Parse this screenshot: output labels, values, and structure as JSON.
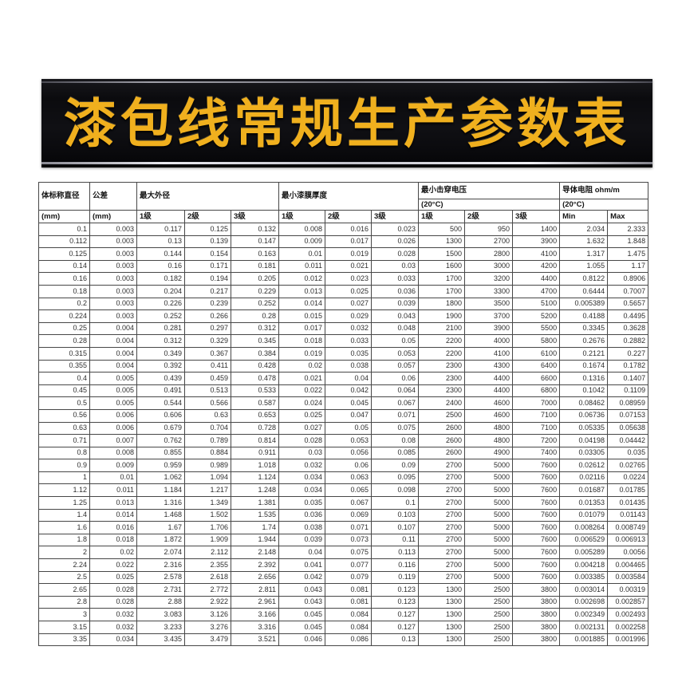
{
  "banner": {
    "title": "漆包线常规生产参数表"
  },
  "colors": {
    "banner_background": "#0b0b0e",
    "banner_title_gold": "#f0b01e",
    "banner_trim_silver": "#c4c4cd",
    "table_border": "#474747",
    "table_text": "#2e2e2e"
  },
  "table": {
    "header": {
      "diameter": {
        "label": "体标称直径",
        "unit": "(mm)"
      },
      "tolerance": {
        "label": "公差",
        "unit": "(mm)"
      },
      "max_od": {
        "label": "最大外径",
        "grades": [
          "1级",
          "2级",
          "3级"
        ]
      },
      "min_film": {
        "label": "最小漆膜厚度",
        "grades": [
          "1级",
          "2级",
          "3级"
        ]
      },
      "breakdown": {
        "label": "最小击穿电压",
        "temp": "(20°C)",
        "grades": [
          "1级",
          "2级",
          "3级"
        ]
      },
      "resistance": {
        "label": "导体电阻 ohm/m",
        "temp": "(20°C)",
        "limits": [
          "Min",
          "Max"
        ]
      }
    },
    "rows": [
      [
        "0.1",
        "0.003",
        "0.117",
        "0.125",
        "0.132",
        "0.008",
        "0.016",
        "0.023",
        "500",
        "950",
        "1400",
        "2.034",
        "2.333"
      ],
      [
        "0.112",
        "0.003",
        "0.13",
        "0.139",
        "0.147",
        "0.009",
        "0.017",
        "0.026",
        "1300",
        "2700",
        "3900",
        "1.632",
        "1.848"
      ],
      [
        "0.125",
        "0.003",
        "0.144",
        "0.154",
        "0.163",
        "0.01",
        "0.019",
        "0.028",
        "1500",
        "2800",
        "4100",
        "1.317",
        "1.475"
      ],
      [
        "0.14",
        "0.003",
        "0.16",
        "0.171",
        "0.181",
        "0.011",
        "0.021",
        "0.03",
        "1600",
        "3000",
        "4200",
        "1.055",
        "1.17"
      ],
      [
        "0.16",
        "0.003",
        "0.182",
        "0.194",
        "0.205",
        "0.012",
        "0.023",
        "0.033",
        "1700",
        "3200",
        "4400",
        "0.8122",
        "0.8906"
      ],
      [
        "0.18",
        "0.003",
        "0.204",
        "0.217",
        "0.229",
        "0.013",
        "0.025",
        "0.036",
        "1700",
        "3300",
        "4700",
        "0.6444",
        "0.7007"
      ],
      [
        "0.2",
        "0.003",
        "0.226",
        "0.239",
        "0.252",
        "0.014",
        "0.027",
        "0.039",
        "1800",
        "3500",
        "5100",
        "0.005389",
        "0.5657"
      ],
      [
        "0.224",
        "0.003",
        "0.252",
        "0.266",
        "0.28",
        "0.015",
        "0.029",
        "0.043",
        "1900",
        "3700",
        "5200",
        "0.4188",
        "0.4495"
      ],
      [
        "0.25",
        "0.004",
        "0.281",
        "0.297",
        "0.312",
        "0.017",
        "0.032",
        "0.048",
        "2100",
        "3900",
        "5500",
        "0.3345",
        "0.3628"
      ],
      [
        "0.28",
        "0.004",
        "0.312",
        "0.329",
        "0.345",
        "0.018",
        "0.033",
        "0.05",
        "2200",
        "4000",
        "5800",
        "0.2676",
        "0.2882"
      ],
      [
        "0.315",
        "0.004",
        "0.349",
        "0.367",
        "0.384",
        "0.019",
        "0.035",
        "0.053",
        "2200",
        "4100",
        "6100",
        "0.2121",
        "0.227"
      ],
      [
        "0.355",
        "0.004",
        "0.392",
        "0.411",
        "0.428",
        "0.02",
        "0.038",
        "0.057",
        "2300",
        "4300",
        "6400",
        "0.1674",
        "0.1782"
      ],
      [
        "0.4",
        "0.005",
        "0.439",
        "0.459",
        "0.478",
        "0.021",
        "0.04",
        "0.06",
        "2300",
        "4400",
        "6600",
        "0.1316",
        "0.1407"
      ],
      [
        "0.45",
        "0.005",
        "0.491",
        "0.513",
        "0.533",
        "0.022",
        "0.042",
        "0.064",
        "2300",
        "4400",
        "6800",
        "0.1042",
        "0.1109"
      ],
      [
        "0.5",
        "0.005",
        "0.544",
        "0.566",
        "0.587",
        "0.024",
        "0.045",
        "0.067",
        "2400",
        "4600",
        "7000",
        "0.08462",
        "0.08959"
      ],
      [
        "0.56",
        "0.006",
        "0.606",
        "0.63",
        "0.653",
        "0.025",
        "0.047",
        "0.071",
        "2500",
        "4600",
        "7100",
        "0.06736",
        "0.07153"
      ],
      [
        "0.63",
        "0.006",
        "0.679",
        "0.704",
        "0.728",
        "0.027",
        "0.05",
        "0.075",
        "2600",
        "4800",
        "7100",
        "0.05335",
        "0.05638"
      ],
      [
        "0.71",
        "0.007",
        "0.762",
        "0.789",
        "0.814",
        "0.028",
        "0.053",
        "0.08",
        "2600",
        "4800",
        "7200",
        "0.04198",
        "0.04442"
      ],
      [
        "0.8",
        "0.008",
        "0.855",
        "0.884",
        "0.911",
        "0.03",
        "0.056",
        "0.085",
        "2600",
        "4900",
        "7400",
        "0.03305",
        "0.035"
      ],
      [
        "0.9",
        "0.009",
        "0.959",
        "0.989",
        "1.018",
        "0.032",
        "0.06",
        "0.09",
        "2700",
        "5000",
        "7600",
        "0.02612",
        "0.02765"
      ],
      [
        "1",
        "0.01",
        "1.062",
        "1.094",
        "1.124",
        "0.034",
        "0.063",
        "0.095",
        "2700",
        "5000",
        "7600",
        "0.02116",
        "0.0224"
      ],
      [
        "1.12",
        "0.011",
        "1.184",
        "1.217",
        "1.248",
        "0.034",
        "0.065",
        "0.098",
        "2700",
        "5000",
        "7600",
        "0.01687",
        "0.01785"
      ],
      [
        "1.25",
        "0.013",
        "1.316",
        "1.349",
        "1.381",
        "0.035",
        "0.067",
        "0.1",
        "2700",
        "5000",
        "7600",
        "0.01353",
        "0.01435"
      ],
      [
        "1.4",
        "0.014",
        "1.468",
        "1.502",
        "1.535",
        "0.036",
        "0.069",
        "0.103",
        "2700",
        "5000",
        "7600",
        "0.01079",
        "0.01143"
      ],
      [
        "1.6",
        "0.016",
        "1.67",
        "1.706",
        "1.74",
        "0.038",
        "0.071",
        "0.107",
        "2700",
        "5000",
        "7600",
        "0.008264",
        "0.008749"
      ],
      [
        "1.8",
        "0.018",
        "1.872",
        "1.909",
        "1.944",
        "0.039",
        "0.073",
        "0.11",
        "2700",
        "5000",
        "7600",
        "0.006529",
        "0.006913"
      ],
      [
        "2",
        "0.02",
        "2.074",
        "2.112",
        "2.148",
        "0.04",
        "0.075",
        "0.113",
        "2700",
        "5000",
        "7600",
        "0.005289",
        "0.0056"
      ],
      [
        "2.24",
        "0.022",
        "2.316",
        "2.355",
        "2.392",
        "0.041",
        "0.077",
        "0.116",
        "2700",
        "5000",
        "7600",
        "0.004218",
        "0.004465"
      ],
      [
        "2.5",
        "0.025",
        "2.578",
        "2.618",
        "2.656",
        "0.042",
        "0.079",
        "0.119",
        "2700",
        "5000",
        "7600",
        "0.003385",
        "0.003584"
      ],
      [
        "2.65",
        "0.028",
        "2.731",
        "2.772",
        "2.811",
        "0.043",
        "0.081",
        "0.123",
        "1300",
        "2500",
        "3800",
        "0.003014",
        "0.00319"
      ],
      [
        "2.8",
        "0.028",
        "2.88",
        "2.922",
        "2.961",
        "0.043",
        "0.081",
        "0.123",
        "1300",
        "2500",
        "3800",
        "0.002698",
        "0.002857"
      ],
      [
        "3",
        "0.032",
        "3.083",
        "3.126",
        "3.166",
        "0.045",
        "0.084",
        "0.127",
        "1300",
        "2500",
        "3800",
        "0.002349",
        "0.002493"
      ],
      [
        "3.15",
        "0.032",
        "3.233",
        "3.276",
        "3.316",
        "0.045",
        "0.084",
        "0.127",
        "1300",
        "2500",
        "3800",
        "0.002131",
        "0.002258"
      ],
      [
        "3.35",
        "0.034",
        "3.435",
        "3.479",
        "3.521",
        "0.046",
        "0.086",
        "0.13",
        "1300",
        "2500",
        "3800",
        "0.001885",
        "0.001996"
      ]
    ]
  }
}
